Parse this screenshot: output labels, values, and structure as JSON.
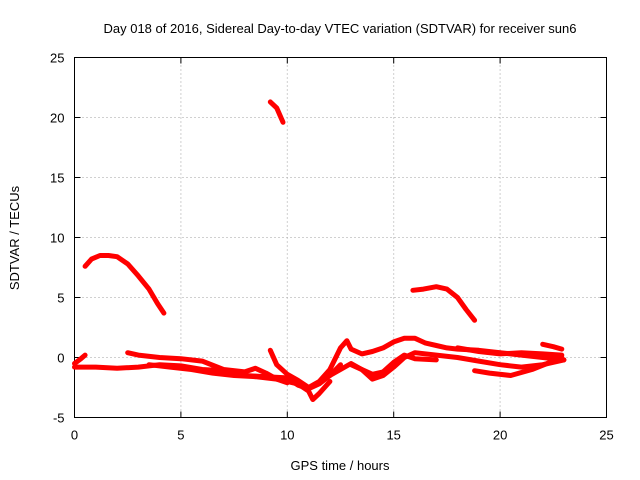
{
  "chart_data": {
    "type": "line",
    "title": "Day 018 of 2016, Sidereal Day-to-day VTEC variation (SDTVAR) for receiver sun6",
    "xlabel": "GPS time / hours",
    "ylabel": "SDTVAR / TECUs",
    "xlim": [
      0,
      25
    ],
    "ylim": [
      -5,
      25
    ],
    "xticks": [
      0,
      5,
      10,
      15,
      20,
      25
    ],
    "yticks": [
      -5,
      0,
      5,
      10,
      15,
      20,
      25
    ],
    "xtick_labels": [
      "0",
      "5",
      "10",
      "15",
      "20",
      "25"
    ],
    "ytick_labels": [
      "-5",
      "0",
      "5",
      "10",
      "15",
      "20",
      "25"
    ],
    "grid": true,
    "color": "#ff0000",
    "series": [
      {
        "name": "arc-early-high",
        "x": [
          0.5,
          0.8,
          1.2,
          1.6,
          2.0,
          2.5,
          3.0,
          3.5,
          3.9,
          4.2
        ],
        "y": [
          7.6,
          8.2,
          8.5,
          8.5,
          8.4,
          7.8,
          6.8,
          5.7,
          4.5,
          3.7
        ]
      },
      {
        "name": "arc-spike",
        "x": [
          9.2,
          9.5,
          9.8
        ],
        "y": [
          21.3,
          20.8,
          19.6
        ]
      },
      {
        "name": "arc-afternoon-high",
        "x": [
          15.9,
          16.4,
          17.0,
          17.5,
          18.0,
          18.4,
          18.8
        ],
        "y": [
          5.6,
          5.7,
          5.9,
          5.7,
          5.0,
          4.0,
          3.1
        ]
      },
      {
        "name": "arc-low-1",
        "x": [
          0.0,
          0.3,
          0.5
        ],
        "y": [
          -0.5,
          -0.1,
          0.2
        ]
      },
      {
        "name": "arc-low-2",
        "x": [
          0.0,
          1.0,
          2.0,
          3.0,
          4.0,
          5.0,
          6.0,
          7.0,
          8.0,
          9.0,
          10.0,
          10.5,
          11.0,
          11.5,
          12.0,
          12.5
        ],
        "y": [
          -0.8,
          -0.8,
          -0.9,
          -0.8,
          -0.6,
          -0.7,
          -1.0,
          -1.1,
          -1.5,
          -1.6,
          -1.7,
          -2.3,
          -2.6,
          -2.2,
          -1.5,
          -0.6
        ]
      },
      {
        "name": "arc-low-3",
        "x": [
          2.5,
          3.0,
          4.0,
          5.0,
          6.0,
          7.0,
          8.0,
          8.5,
          9.0,
          9.5,
          10.0
        ],
        "y": [
          0.4,
          0.2,
          0.0,
          -0.1,
          -0.3,
          -1.0,
          -1.2,
          -0.9,
          -1.3,
          -1.8,
          -2.1
        ]
      },
      {
        "name": "arc-low-4",
        "x": [
          3.5,
          4.5,
          5.5,
          6.5,
          7.5,
          8.5,
          9.5,
          10.5,
          11.0,
          11.2,
          11.5,
          12.0
        ],
        "y": [
          -0.6,
          -0.8,
          -1.0,
          -1.3,
          -1.5,
          -1.6,
          -1.8,
          -2.2,
          -2.8,
          -3.5,
          -3.0,
          -2.0
        ]
      },
      {
        "name": "arc-mid-1",
        "x": [
          9.2,
          9.5,
          10.0,
          10.5,
          11.0,
          11.5,
          12.0,
          12.5,
          12.8,
          13.0,
          13.5,
          14.0,
          14.5,
          15.0,
          15.5,
          16.0,
          16.5,
          17.0,
          17.5,
          18.0,
          19.0,
          20.0,
          21.0,
          22.0,
          23.0
        ],
        "y": [
          0.6,
          -0.6,
          -1.4,
          -1.9,
          -2.5,
          -2.0,
          -1.0,
          0.8,
          1.4,
          0.7,
          0.3,
          0.5,
          0.8,
          1.3,
          1.6,
          1.6,
          1.2,
          1.0,
          0.8,
          0.7,
          0.6,
          0.4,
          0.2,
          0.0,
          -0.2
        ]
      },
      {
        "name": "arc-mid-2",
        "x": [
          12.0,
          12.5,
          13.0,
          13.5,
          14.0,
          14.5,
          15.0,
          15.5,
          16.0,
          17.0,
          18.0,
          19.0,
          20.0,
          21.0,
          22.0,
          23.0
        ],
        "y": [
          -1.5,
          -1.0,
          -0.5,
          -1.0,
          -1.8,
          -1.5,
          -0.8,
          0.0,
          0.4,
          0.2,
          0.0,
          -0.3,
          -0.6,
          -0.8,
          -0.6,
          -0.2
        ]
      },
      {
        "name": "arc-mid-3",
        "x": [
          13.0,
          14.0,
          14.5,
          15.0,
          15.5,
          16.0,
          17.0
        ],
        "y": [
          -0.6,
          -1.4,
          -1.2,
          -0.4,
          0.2,
          -0.1,
          -0.2
        ]
      },
      {
        "name": "arc-late-1",
        "x": [
          18.0,
          19.0,
          20.0,
          21.0,
          22.0,
          22.9
        ],
        "y": [
          0.8,
          0.5,
          0.3,
          0.4,
          0.3,
          0.2
        ]
      },
      {
        "name": "arc-late-2",
        "x": [
          18.8,
          19.5,
          20.5,
          21.5,
          22.5,
          22.9
        ],
        "y": [
          -1.1,
          -1.3,
          -1.5,
          -1.0,
          -0.3,
          0.0
        ]
      },
      {
        "name": "arc-late-3",
        "x": [
          22.0,
          22.5,
          22.9
        ],
        "y": [
          1.1,
          0.9,
          0.7
        ]
      }
    ]
  }
}
